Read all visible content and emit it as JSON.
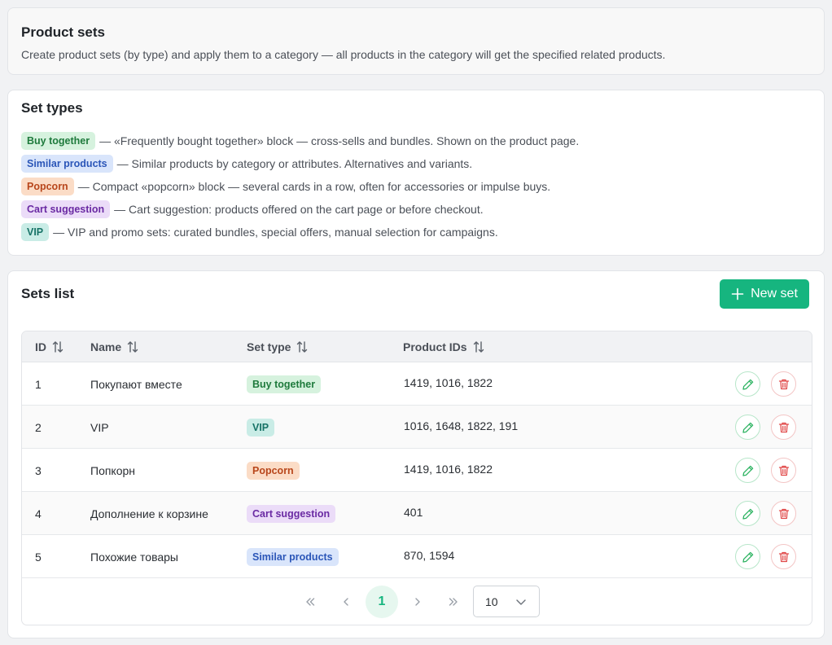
{
  "intro": {
    "title": "Product sets",
    "description": "Create product sets (by type) and apply them to a category — all products in the category will get the specified related products."
  },
  "types": {
    "title": "Set types",
    "items": [
      {
        "label": "Buy together",
        "description": "— «Frequently bought together» block — cross-sells and bundles. Shown on the product page."
      },
      {
        "label": "Similar products",
        "description": "— Similar products by category or attributes. Alternatives and variants."
      },
      {
        "label": "Popcorn",
        "description": "— Compact «popcorn» block — several cards in a row, often for accessories or impulse buys."
      },
      {
        "label": "Cart suggestion",
        "description": "— Cart suggestion: products offered on the cart page or before checkout."
      },
      {
        "label": "VIP",
        "description": "— VIP and promo sets: curated bundles, special offers, manual selection for campaigns."
      }
    ]
  },
  "list": {
    "title": "Sets list",
    "new_button": "New set",
    "columns": {
      "id": "ID",
      "name": "Name",
      "type": "Set type",
      "products": "Product IDs"
    },
    "rows": [
      {
        "id": "1",
        "name": "Покупают вместе",
        "type": "Buy together",
        "products": "1419, 1016, 1822"
      },
      {
        "id": "2",
        "name": "VIP",
        "type": "VIP",
        "products": "1016, 1648, 1822, 191"
      },
      {
        "id": "3",
        "name": "Попкорн",
        "type": "Popcorn",
        "products": "1419, 1016, 1822"
      },
      {
        "id": "4",
        "name": "Дополнение к корзине",
        "type": "Cart suggestion",
        "products": "401"
      },
      {
        "id": "5",
        "name": "Похожие товары",
        "type": "Similar products",
        "products": "870, 1594"
      }
    ],
    "pagination": {
      "current_page": "1",
      "page_size": "10"
    }
  },
  "colors": {
    "accent": "#16b57f",
    "edit": "#2fb463",
    "delete": "#e04848"
  },
  "icons": {
    "new": "plus-icon",
    "sort": "sort-icon",
    "edit": "pencil-icon",
    "delete": "trash-icon",
    "first": "chevrons-left-icon",
    "prev": "chevron-left-icon",
    "next": "chevron-right-icon",
    "last": "chevrons-right-icon",
    "select": "chevron-down-icon"
  }
}
